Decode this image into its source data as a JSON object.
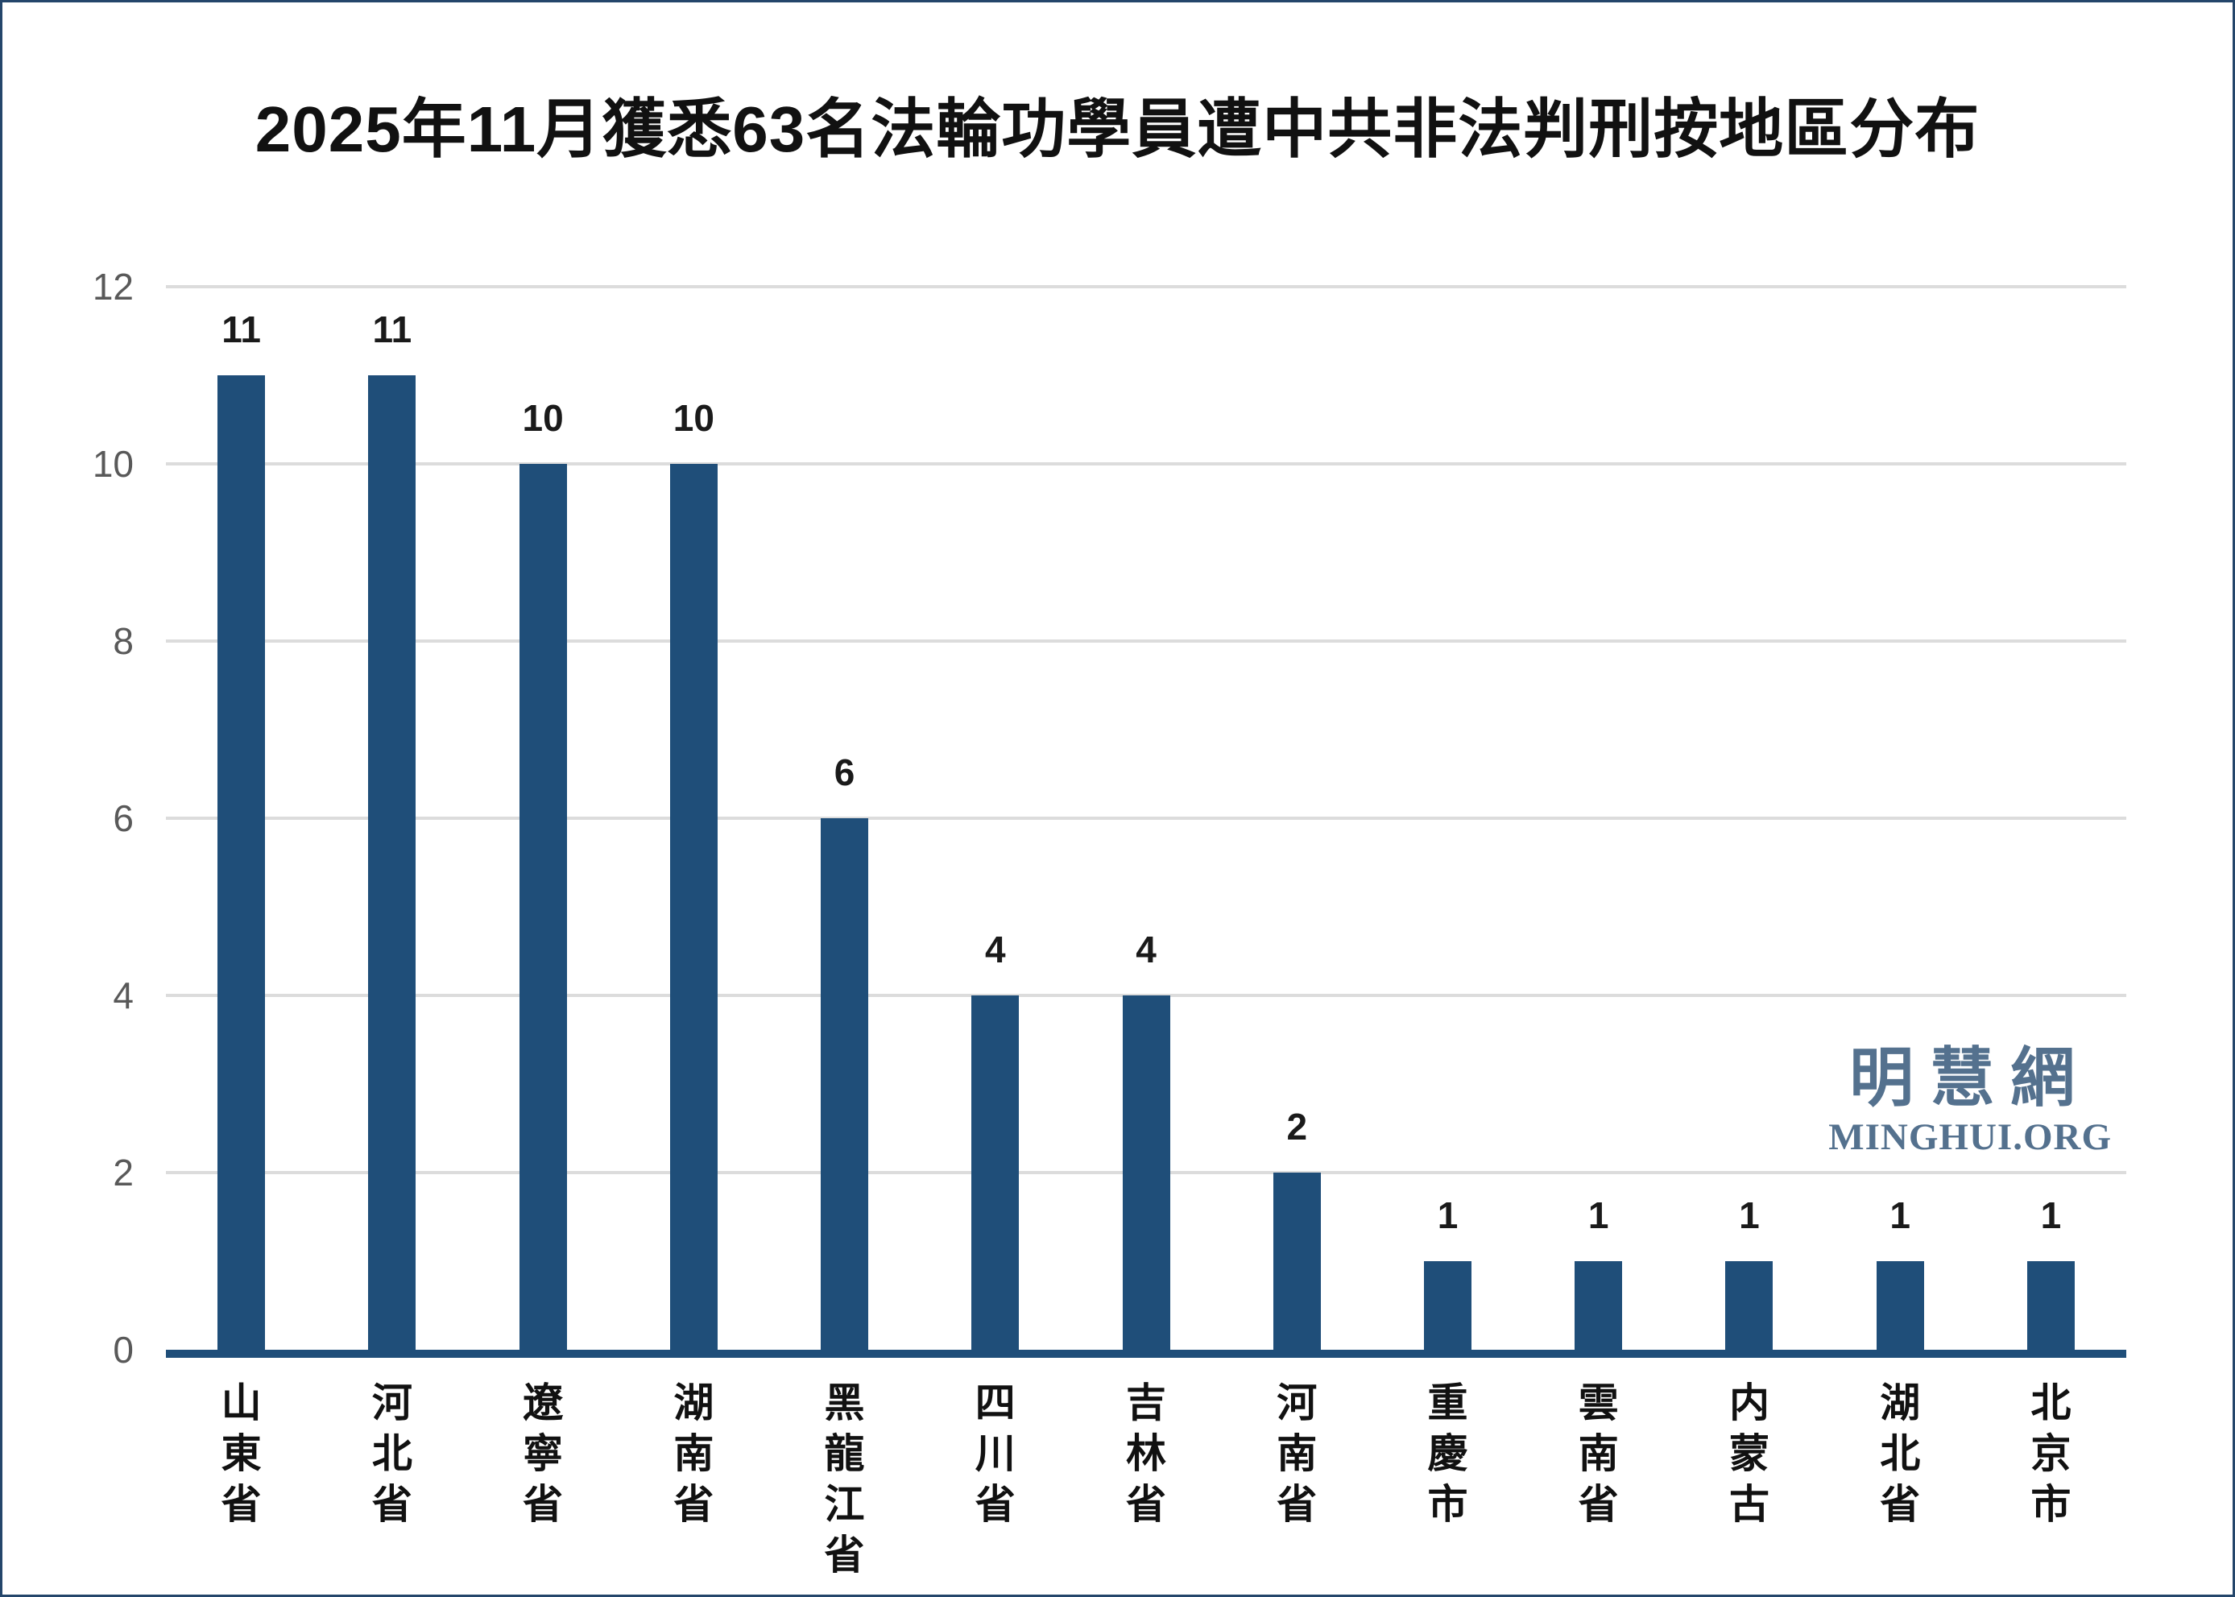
{
  "title": "2025年11月獲悉63名法輪功學員遭中共非法判刑按地區分布",
  "watermark": {
    "cn": "明慧網",
    "en": "MINGHUI.ORG"
  },
  "chart_data": {
    "type": "bar",
    "title": "2025年11月獲悉63名法輪功學員遭中共非法判刑按地區分布",
    "categories": [
      "山東省",
      "河北省",
      "遼寧省",
      "湖南省",
      "黑龍江省",
      "四川省",
      "吉林省",
      "河南省",
      "重慶市",
      "雲南省",
      "内蒙古",
      "湖北省",
      "北京市"
    ],
    "values": [
      11,
      11,
      10,
      10,
      6,
      4,
      4,
      2,
      1,
      1,
      1,
      1,
      1
    ],
    "value_labels": [
      "11",
      "11",
      "10",
      "10",
      "6",
      "4",
      "4",
      "2",
      "1",
      "1",
      "1",
      "1",
      "1"
    ],
    "xlabel": "",
    "ylabel": "",
    "ylim": [
      0,
      12
    ],
    "yticks": [
      0,
      2,
      4,
      6,
      8,
      10,
      12
    ],
    "grid": "horizontal",
    "legend_position": "none",
    "bar_color": "#1f4e79",
    "axis_line_color": "#1f4e79",
    "gridline_color": "#dcdcdc",
    "tick_label_color": "#595959",
    "value_label_color": "#1a1a1a",
    "watermark_color": "#54718e",
    "border_color": "#24466b"
  }
}
